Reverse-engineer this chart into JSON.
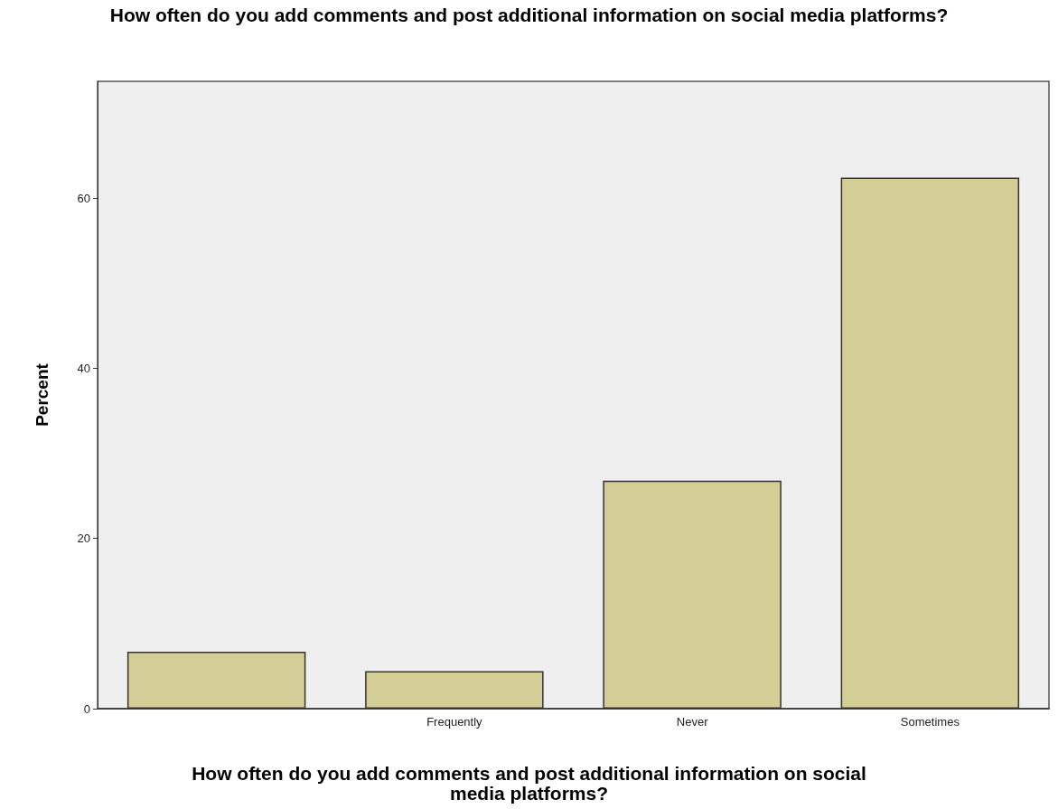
{
  "chart_data": {
    "type": "bar",
    "title": "How often do you add comments and post additional information on social media platforms?",
    "xlabel": "How often do you add comments and post additional information on social media platforms?",
    "ylabel": "Percent",
    "categories": [
      null,
      "Frequently",
      "Never",
      "Sometimes"
    ],
    "values": [
      6.7,
      4.4,
      26.8,
      62.4
    ],
    "color": "#d3cd96",
    "ylim": [
      0,
      73.7
    ],
    "yticks": [
      0,
      20,
      40,
      60
    ],
    "grid": false
  }
}
